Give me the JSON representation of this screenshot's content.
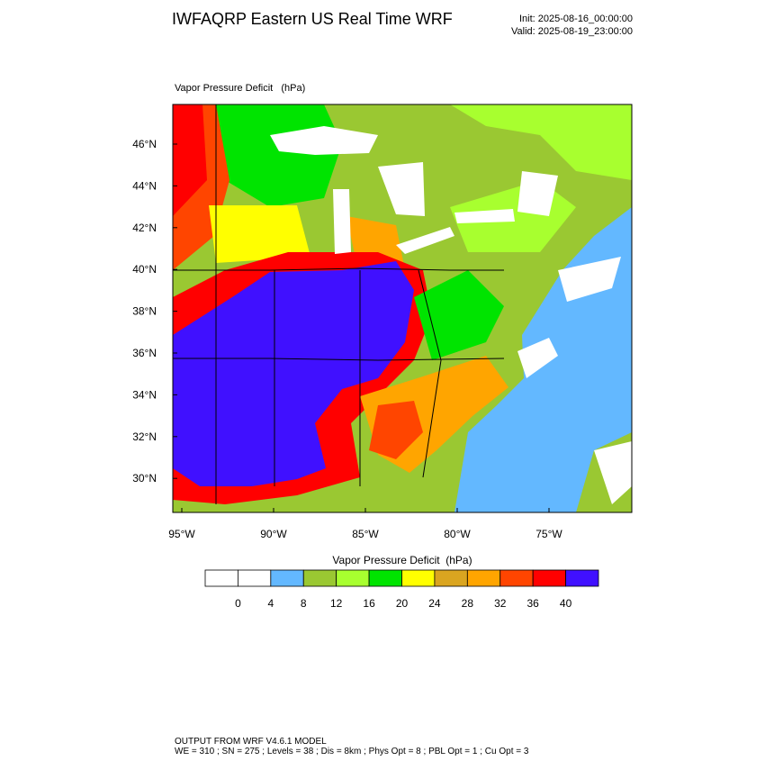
{
  "header": {
    "title": "IWFAQRP Eastern US Real Time WRF",
    "init": "Init: 2025-08-16_00:00:00",
    "valid": "Valid: 2025-08-19_23:00:00"
  },
  "map": {
    "title": "Vapor Pressure Deficit   (hPa)",
    "lat_labels": [
      "46°N",
      "44°N",
      "42°N",
      "40°N",
      "38°N",
      "36°N",
      "34°N",
      "32°N",
      "30°N"
    ],
    "lon_labels": [
      "95°W",
      "90°W",
      "85°W",
      "80°W",
      "75°W"
    ]
  },
  "colorbar": {
    "title": "Vapor Pressure Deficit  (hPa)",
    "colors": [
      "#ffffff",
      "#ffffff",
      "#63b8ff",
      "#9ac832",
      "#a8ff2f",
      "#00e400",
      "#ffff00",
      "#daa520",
      "#ffa500",
      "#ff4500",
      "#ff0000",
      "#4010ff"
    ],
    "labels": [
      0,
      4,
      8,
      12,
      16,
      20,
      24,
      28,
      32,
      36,
      40
    ]
  },
  "footer": {
    "line1": "OUTPUT FROM WRF V4.6.1 MODEL",
    "line2": "WE = 310 ; SN = 275 ; Levels = 38 ; Dis = 8km ; Phys Opt = 8 ; PBL Opt = 1 ; Cu Opt = 3"
  }
}
